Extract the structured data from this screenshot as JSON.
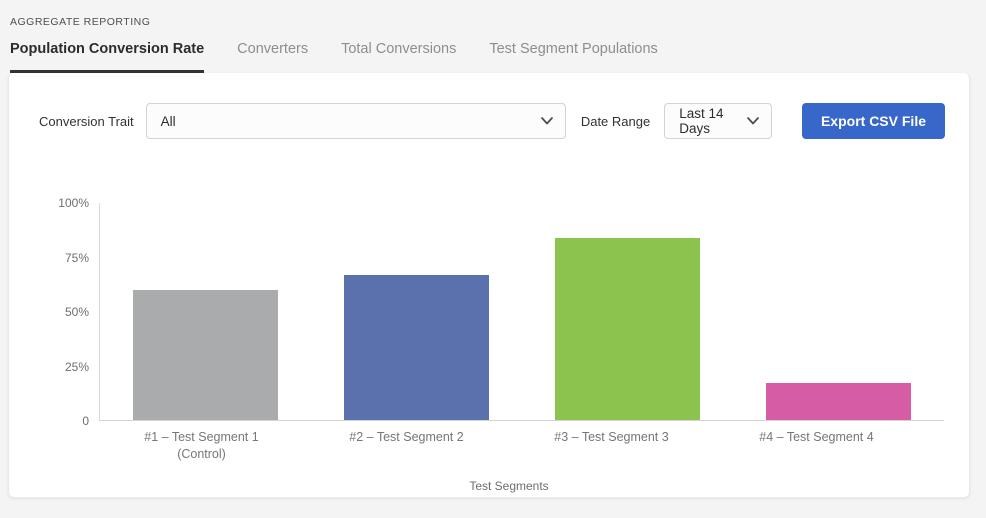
{
  "header": {
    "eyebrow": "AGGREGATE REPORTING",
    "tabs": [
      {
        "label": "Population Conversion Rate",
        "active": true
      },
      {
        "label": "Converters",
        "active": false
      },
      {
        "label": "Total Conversions",
        "active": false
      },
      {
        "label": "Test Segment Populations",
        "active": false
      }
    ]
  },
  "filters": {
    "conversion_trait_label": "Conversion Trait",
    "conversion_trait_value": "All",
    "date_range_label": "Date Range",
    "date_range_value": "Last 14 Days",
    "export_button_label": "Export CSV File",
    "export_button_color": "#3767c8"
  },
  "chart_data": {
    "type": "bar",
    "title": "",
    "xlabel": "Test Segments",
    "ylabel": "",
    "ylim": [
      0,
      100
    ],
    "yticks": [
      0,
      25,
      50,
      75,
      100
    ],
    "ytick_labels": [
      "0",
      "25%",
      "50%",
      "75%",
      "100%"
    ],
    "categories": [
      "#1 – Test Segment 1 (Control)",
      "#2 – Test Segment 2",
      "#3 – Test Segment 3",
      "#4 – Test Segment 4"
    ],
    "category_lines": [
      [
        "#1 – Test Segment 1",
        "(Control)"
      ],
      [
        "#2 – Test Segment 2"
      ],
      [
        "#3 – Test Segment 3"
      ],
      [
        "#4 – Test Segment 4"
      ]
    ],
    "values": [
      60,
      67,
      84,
      17
    ],
    "bar_colors": [
      "#a9abad",
      "#5b71ad",
      "#8bc34e",
      "#d55ca5"
    ],
    "grid": false,
    "legend": "none"
  }
}
